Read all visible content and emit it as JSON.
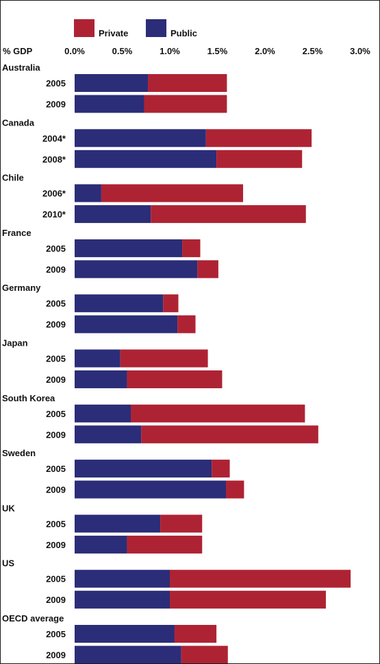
{
  "chart_data": {
    "type": "bar",
    "stacked": true,
    "orientation": "horizontal",
    "unit_label": "% GDP",
    "xlim": [
      0,
      3.0
    ],
    "x_ticks": [
      "0.0%",
      "0.5%",
      "1.0%",
      "1.5%",
      "2.0%",
      "2.5%",
      "3.0%"
    ],
    "grid": false,
    "legend_position": "top",
    "series": [
      {
        "name": "Public",
        "color": "#2b2d78"
      },
      {
        "name": "Private",
        "color": "#ae2333"
      }
    ],
    "groups": [
      {
        "country": "Australia",
        "rows": [
          {
            "label": "2005",
            "public": 0.77,
            "private": 0.83
          },
          {
            "label": "2009",
            "public": 0.73,
            "private": 0.87
          }
        ]
      },
      {
        "country": "Canada",
        "rows": [
          {
            "label": "2004*",
            "public": 1.38,
            "private": 1.11
          },
          {
            "label": "2008*",
            "public": 1.49,
            "private": 0.9
          }
        ]
      },
      {
        "country": "Chile",
        "rows": [
          {
            "label": "2006*",
            "public": 0.28,
            "private": 1.49
          },
          {
            "label": "2010*",
            "public": 0.8,
            "private": 1.63
          }
        ]
      },
      {
        "country": "France",
        "rows": [
          {
            "label": "2005",
            "public": 1.13,
            "private": 0.19
          },
          {
            "label": "2009",
            "public": 1.29,
            "private": 0.22
          }
        ]
      },
      {
        "country": "Germany",
        "rows": [
          {
            "label": "2005",
            "public": 0.93,
            "private": 0.16
          },
          {
            "label": "2009",
            "public": 1.08,
            "private": 0.19
          }
        ]
      },
      {
        "country": "Japan",
        "rows": [
          {
            "label": "2005",
            "public": 0.48,
            "private": 0.92
          },
          {
            "label": "2009",
            "public": 0.55,
            "private": 1.0
          }
        ]
      },
      {
        "country": "South Korea",
        "rows": [
          {
            "label": "2005",
            "public": 0.59,
            "private": 1.83
          },
          {
            "label": "2009",
            "public": 0.7,
            "private": 1.86
          }
        ]
      },
      {
        "country": "Sweden",
        "rows": [
          {
            "label": "2005",
            "public": 1.44,
            "private": 0.19
          },
          {
            "label": "2009",
            "public": 1.59,
            "private": 0.19
          }
        ]
      },
      {
        "country": "UK",
        "rows": [
          {
            "label": "2005",
            "public": 0.9,
            "private": 0.44
          },
          {
            "label": "2009",
            "public": 0.55,
            "private": 0.79
          }
        ]
      },
      {
        "country": "US",
        "rows": [
          {
            "label": "2005",
            "public": 1.0,
            "private": 1.9
          },
          {
            "label": "2009",
            "public": 1.0,
            "private": 1.64
          }
        ]
      },
      {
        "country": "OECD average",
        "rows": [
          {
            "label": "2005",
            "public": 1.05,
            "private": 0.44
          },
          {
            "label": "2009",
            "public": 1.12,
            "private": 0.49
          }
        ]
      }
    ]
  }
}
